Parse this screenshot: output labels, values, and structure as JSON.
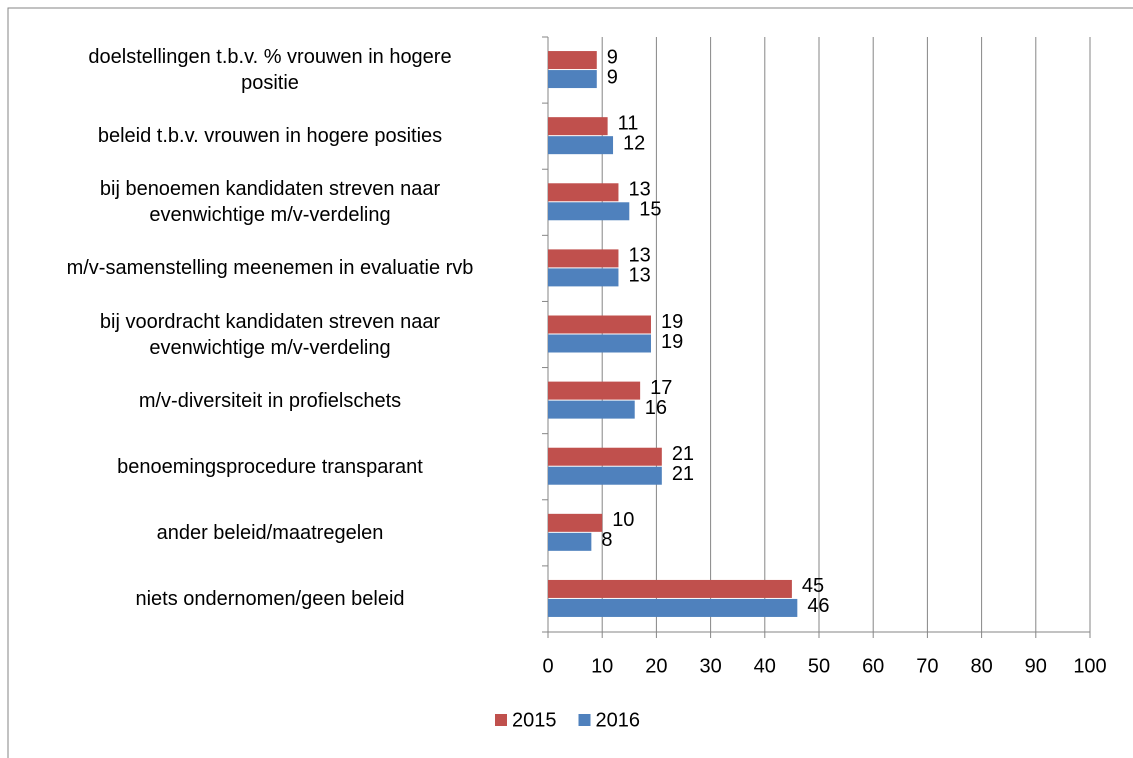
{
  "chart_data": {
    "type": "hbar",
    "categories": [
      "doelstellingen t.b.v. % vrouwen in hogere\npositie",
      "beleid t.b.v. vrouwen in hogere posities",
      "bij benoemen kandidaten streven naar\nevenwichtige m/v-verdeling",
      "m/v-samenstelling meenemen in evaluatie rvb",
      "bij voordracht kandidaten streven naar\nevenwichtige m/v-verdeling",
      "m/v-diversiteit in profielschets",
      "benoemingsprocedure transparant",
      "ander beleid/maatregelen",
      "niets ondernomen/geen beleid"
    ],
    "series": [
      {
        "name": "2015",
        "color": "#c0504d",
        "values": [
          9,
          11,
          13,
          13,
          19,
          17,
          21,
          10,
          45
        ]
      },
      {
        "name": "2016",
        "color": "#4f81bd",
        "values": [
          9,
          12,
          15,
          13,
          19,
          16,
          21,
          8,
          46
        ]
      }
    ],
    "xlim": [
      0,
      100
    ],
    "xticks": [
      0,
      10,
      20,
      30,
      40,
      50,
      60,
      70,
      80,
      90,
      100
    ],
    "grid": true,
    "legend": "bottom"
  }
}
